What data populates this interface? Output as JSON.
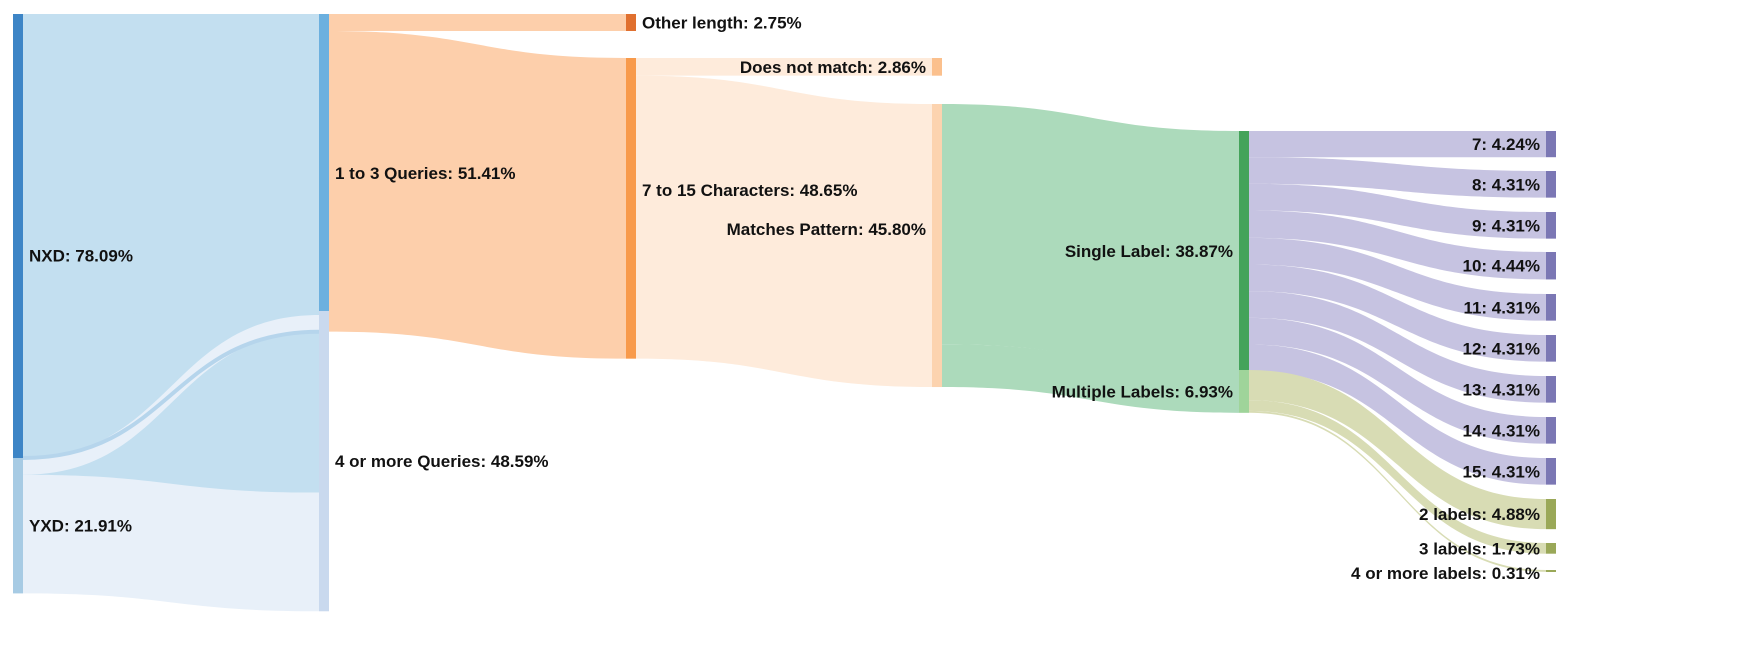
{
  "chart_data": {
    "type": "sankey",
    "title": "",
    "nodes": [
      {
        "id": "nxd",
        "label": "NXD: 78.09%",
        "value": 78.09,
        "color": "#3d85c6",
        "flow_color": "#c3dff0"
      },
      {
        "id": "yxd",
        "label": "YXD: 21.91%",
        "value": 21.91,
        "color": "#a7cbe4",
        "flow_color": "#e8f0f9"
      },
      {
        "id": "q13",
        "label": "1 to 3 Queries: 51.41%",
        "value": 51.41,
        "color": "#6cb0df",
        "flow_color": "#fdcfab"
      },
      {
        "id": "q4",
        "label": "4 or more Queries: 48.59%",
        "value": 48.59,
        "color": "#c9d9ee",
        "flow_color": "#ffffff"
      },
      {
        "id": "ol",
        "label": "Other length: 2.75%",
        "value": 2.75,
        "color": "#e0702f",
        "flow_color": "#ffffff"
      },
      {
        "id": "c715",
        "label": "7 to 15 Characters: 48.65%",
        "value": 48.65,
        "color": "#f89a4b",
        "flow_color": "#feebdb"
      },
      {
        "id": "dnm",
        "label": "Does not match: 2.86%",
        "value": 2.86,
        "color": "#fbc08d",
        "flow_color": "#ffffff"
      },
      {
        "id": "mp",
        "label": "Matches Pattern: 45.80%",
        "value": 45.8,
        "color": "#fcd3af",
        "flow_color": "#acdabb"
      },
      {
        "id": "sl",
        "label": "Single Label: 38.87%",
        "value": 38.87,
        "color": "#44a35a",
        "flow_color": "#c6c3e1"
      },
      {
        "id": "ml",
        "label": "Multiple Labels: 6.93%",
        "value": 6.93,
        "color": "#9fd49a",
        "flow_color": "#d8dcb4"
      },
      {
        "id": "l7",
        "label": "7: 4.24%",
        "value": 4.24,
        "color": "#7b77b4",
        "flow_color": "#ffffff"
      },
      {
        "id": "l8",
        "label": "8: 4.31%",
        "value": 4.31,
        "color": "#7b77b4",
        "flow_color": "#ffffff"
      },
      {
        "id": "l9",
        "label": "9: 4.31%",
        "value": 4.31,
        "color": "#7b77b4",
        "flow_color": "#ffffff"
      },
      {
        "id": "l10",
        "label": "10: 4.44%",
        "value": 4.44,
        "color": "#7b77b4",
        "flow_color": "#ffffff"
      },
      {
        "id": "l11",
        "label": "11: 4.31%",
        "value": 4.31,
        "color": "#7b77b4",
        "flow_color": "#ffffff"
      },
      {
        "id": "l12",
        "label": "12: 4.31%",
        "value": 4.31,
        "color": "#7b77b4",
        "flow_color": "#ffffff"
      },
      {
        "id": "l13",
        "label": "13: 4.31%",
        "value": 4.31,
        "color": "#7b77b4",
        "flow_color": "#ffffff"
      },
      {
        "id": "l14",
        "label": "14: 4.31%",
        "value": 4.31,
        "color": "#7b77b4",
        "flow_color": "#ffffff"
      },
      {
        "id": "l15",
        "label": "15: 4.31%",
        "value": 4.31,
        "color": "#7b77b4",
        "flow_color": "#ffffff"
      },
      {
        "id": "lab2",
        "label": "2 labels: 4.88%",
        "value": 4.88,
        "color": "#9aa858",
        "flow_color": "#ffffff"
      },
      {
        "id": "lab3",
        "label": "3 labels: 1.73%",
        "value": 1.73,
        "color": "#9aa858",
        "flow_color": "#ffffff"
      },
      {
        "id": "lab4",
        "label": "4 or more labels: 0.31%",
        "value": 0.31,
        "color": "#9aa858",
        "flow_color": "#ffffff"
      }
    ],
    "links": [
      {
        "source": "nxd",
        "target": "q13",
        "value": 48.7
      },
      {
        "source": "nxd",
        "target": "q4",
        "value": 29.39
      },
      {
        "source": "yxd",
        "target": "q13",
        "value": 2.71
      },
      {
        "source": "yxd",
        "target": "q4",
        "value": 19.2
      },
      {
        "source": "q13",
        "target": "ol",
        "value": 2.75
      },
      {
        "source": "q13",
        "target": "c715",
        "value": 48.65
      },
      {
        "source": "c715",
        "target": "dnm",
        "value": 2.86
      },
      {
        "source": "c715",
        "target": "mp",
        "value": 45.79
      },
      {
        "source": "mp",
        "target": "sl",
        "value": 38.87
      },
      {
        "source": "mp",
        "target": "ml",
        "value": 6.93
      },
      {
        "source": "sl",
        "target": "l7",
        "value": 4.24
      },
      {
        "source": "sl",
        "target": "l8",
        "value": 4.31
      },
      {
        "source": "sl",
        "target": "l9",
        "value": 4.31
      },
      {
        "source": "sl",
        "target": "l10",
        "value": 4.44
      },
      {
        "source": "sl",
        "target": "l11",
        "value": 4.31
      },
      {
        "source": "sl",
        "target": "l12",
        "value": 4.31
      },
      {
        "source": "sl",
        "target": "l13",
        "value": 4.31
      },
      {
        "source": "sl",
        "target": "l14",
        "value": 4.31
      },
      {
        "source": "sl",
        "target": "l15",
        "value": 4.31
      },
      {
        "source": "ml",
        "target": "lab2",
        "value": 4.88
      },
      {
        "source": "ml",
        "target": "lab3",
        "value": 1.73
      },
      {
        "source": "ml",
        "target": "lab4",
        "value": 0.31
      }
    ]
  }
}
